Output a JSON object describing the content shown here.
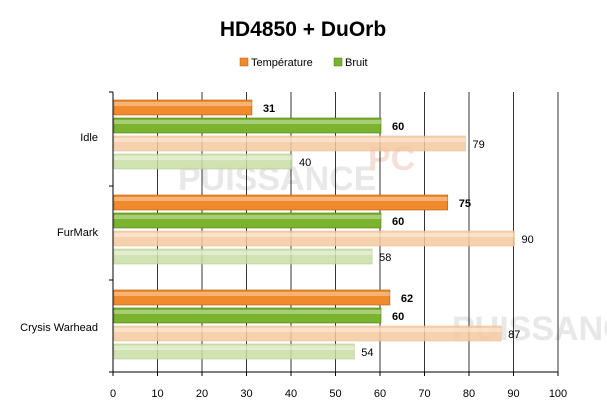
{
  "chart_data": {
    "type": "bar",
    "orientation": "horizontal",
    "title": "HD4850 + DuOrb",
    "legend": [
      "Température",
      "Bruit"
    ],
    "legend_position": "top",
    "categories": [
      "Idle",
      "FurMark",
      "Crysis Warhead"
    ],
    "series": [
      {
        "name": "Température",
        "values": [
          31,
          75,
          62
        ],
        "color": "#f08a2c",
        "style": "solid"
      },
      {
        "name": "Bruit",
        "values": [
          60,
          60,
          60
        ],
        "color": "#7cb32e",
        "style": "solid"
      },
      {
        "values": [
          79,
          90,
          87
        ],
        "color": "#f5c9a0",
        "style": "faded"
      },
      {
        "values": [
          40,
          58,
          54
        ],
        "color": "#c9dfa6",
        "style": "faded"
      }
    ],
    "xlim": [
      0,
      100
    ],
    "xticks": [
      0,
      10,
      20,
      30,
      40,
      50,
      60,
      70,
      80,
      90,
      100
    ],
    "grid": true,
    "colors": {
      "temperature": "#f08a2c",
      "noise": "#7cb32e",
      "temperature_faded": "#f5c9a0",
      "noise_faded": "#c9dfa6",
      "watermark": "#e8e8e8"
    }
  },
  "watermark": {
    "text": "PUISSANCE",
    "suffix": "PC"
  }
}
